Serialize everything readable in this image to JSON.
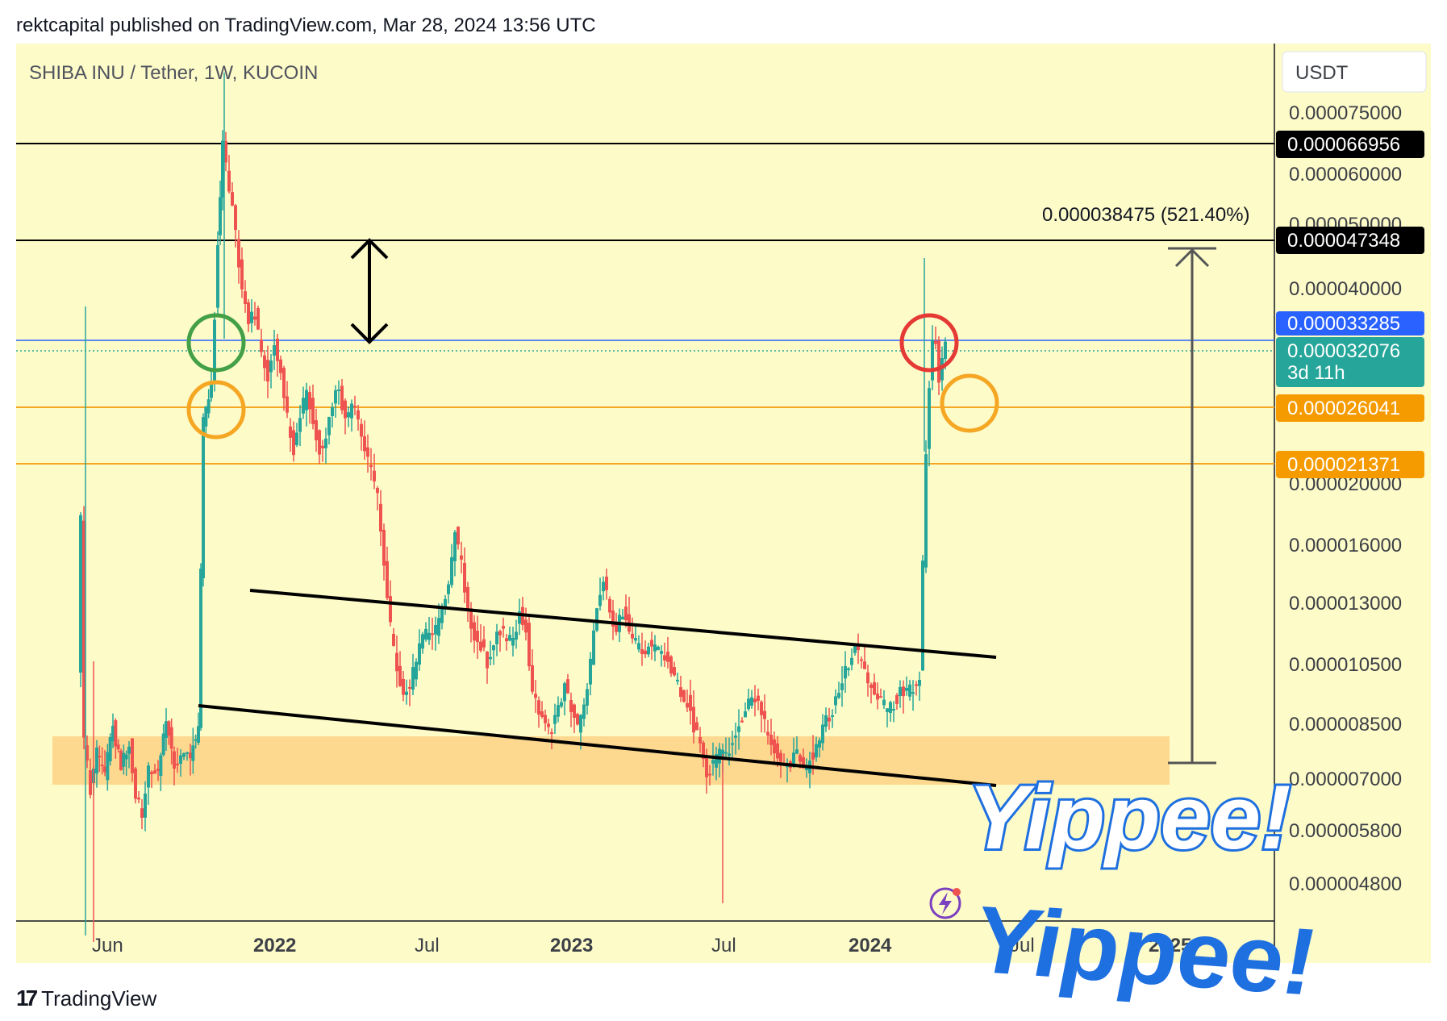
{
  "header": {
    "text": "rektcapital published on TradingView.com, Mar 28, 2024 13:56 UTC"
  },
  "footer": {
    "logo_mark": "17",
    "logo_text": "TradingView"
  },
  "chart_data": {
    "type": "candlestick",
    "symbol_title": "SHIBA INU / Tether, 1W, KUCOIN",
    "currency": "USDT",
    "y_scale": "log",
    "y_ticks": [
      "0.000075000",
      "0.000060000",
      "0.000050000",
      "0.000040000",
      "0.000020000",
      "0.000016000",
      "0.000013000",
      "0.000010500",
      "0.000008500",
      "0.000007000",
      "0.000005800",
      "0.000004800"
    ],
    "x_ticks": [
      {
        "label": "Jun",
        "major": false
      },
      {
        "label": "2022",
        "major": true
      },
      {
        "label": "Jul",
        "major": false
      },
      {
        "label": "2023",
        "major": true
      },
      {
        "label": "Jul",
        "major": false
      },
      {
        "label": "2024",
        "major": true
      },
      {
        "label": "Jul",
        "major": false
      },
      {
        "label": "2025",
        "major": true
      }
    ],
    "horizontal_levels": [
      {
        "value": "0.000066956",
        "color": "#000000"
      },
      {
        "value": "0.000047348",
        "color": "#000000"
      },
      {
        "value": "0.000033285",
        "color": "#2962ff"
      },
      {
        "value": "0.000026041",
        "color": "#f59b00"
      },
      {
        "value": "0.000021371",
        "color": "#f59b00"
      }
    ],
    "last_price": {
      "value": "0.000032076",
      "countdown": "3d 11h",
      "color": "#26a69a"
    },
    "measure": {
      "label": "0.000038475 (521.40%)"
    },
    "support_zone": {
      "from": "0.000006500",
      "to": "0.000008000",
      "color": "#fdd88f"
    },
    "annotation": {
      "text": "Yippee!"
    },
    "colors": {
      "up": "#26a69a",
      "down": "#ef5350",
      "background": "#fdfbc8",
      "grid_line": "#000000"
    }
  }
}
